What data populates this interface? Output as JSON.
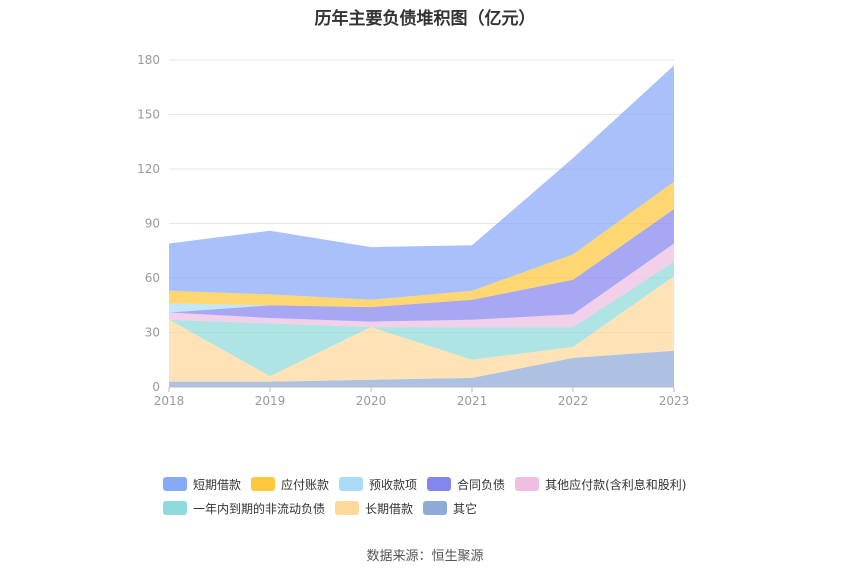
{
  "chart_data": {
    "type": "area",
    "stacked": true,
    "title": "历年主要负债堆积图（亿元）",
    "categories": [
      "2018",
      "2019",
      "2020",
      "2021",
      "2022",
      "2023"
    ],
    "ylim": [
      0,
      180
    ],
    "yticks": [
      0,
      30,
      60,
      90,
      120,
      150,
      180
    ],
    "xlabel": "",
    "ylabel": "",
    "grid": true,
    "legend_position": "bottom",
    "series": [
      {
        "name": "其它",
        "color": "#8eaad8",
        "values": [
          3,
          3,
          4,
          5,
          16,
          20
        ]
      },
      {
        "name": "长期借款",
        "color": "#ffd89b",
        "values": [
          34,
          3,
          29,
          10,
          6,
          41
        ]
      },
      {
        "name": "一年内到期的非流动负债",
        "color": "#8fdada",
        "values": [
          0,
          29,
          0,
          18,
          11,
          8
        ]
      },
      {
        "name": "其他应付款(含利息和股利)",
        "color": "#efbee0",
        "values": [
          4,
          3,
          3,
          4,
          7,
          10
        ]
      },
      {
        "name": "合同负债",
        "color": "#8585ef",
        "values": [
          0,
          7,
          8,
          11,
          19,
          19
        ]
      },
      {
        "name": "预收款项",
        "color": "#aadcf8",
        "values": [
          5,
          0,
          0,
          0,
          0,
          0
        ]
      },
      {
        "name": "应付账款",
        "color": "#ffc83c",
        "values": [
          7,
          6,
          4,
          5,
          14,
          15
        ]
      },
      {
        "name": "短期借款",
        "color": "#88a8f8",
        "values": [
          26,
          35,
          29,
          25,
          53,
          64
        ]
      }
    ]
  },
  "legend": {
    "row1": [
      {
        "label": "短期借款",
        "color": "#88a8f8"
      },
      {
        "label": "应付账款",
        "color": "#ffc83c"
      },
      {
        "label": "预收款项",
        "color": "#aadcf8"
      },
      {
        "label": "合同负债",
        "color": "#8585ef"
      },
      {
        "label": "其他应付款(含利息和股利)",
        "color": "#efbee0"
      }
    ],
    "row2": [
      {
        "label": "一年内到期的非流动负债",
        "color": "#8fdada"
      },
      {
        "label": "长期借款",
        "color": "#ffd89b"
      },
      {
        "label": "其它",
        "color": "#8eaad8"
      }
    ]
  },
  "source": "数据来源：恒生聚源"
}
